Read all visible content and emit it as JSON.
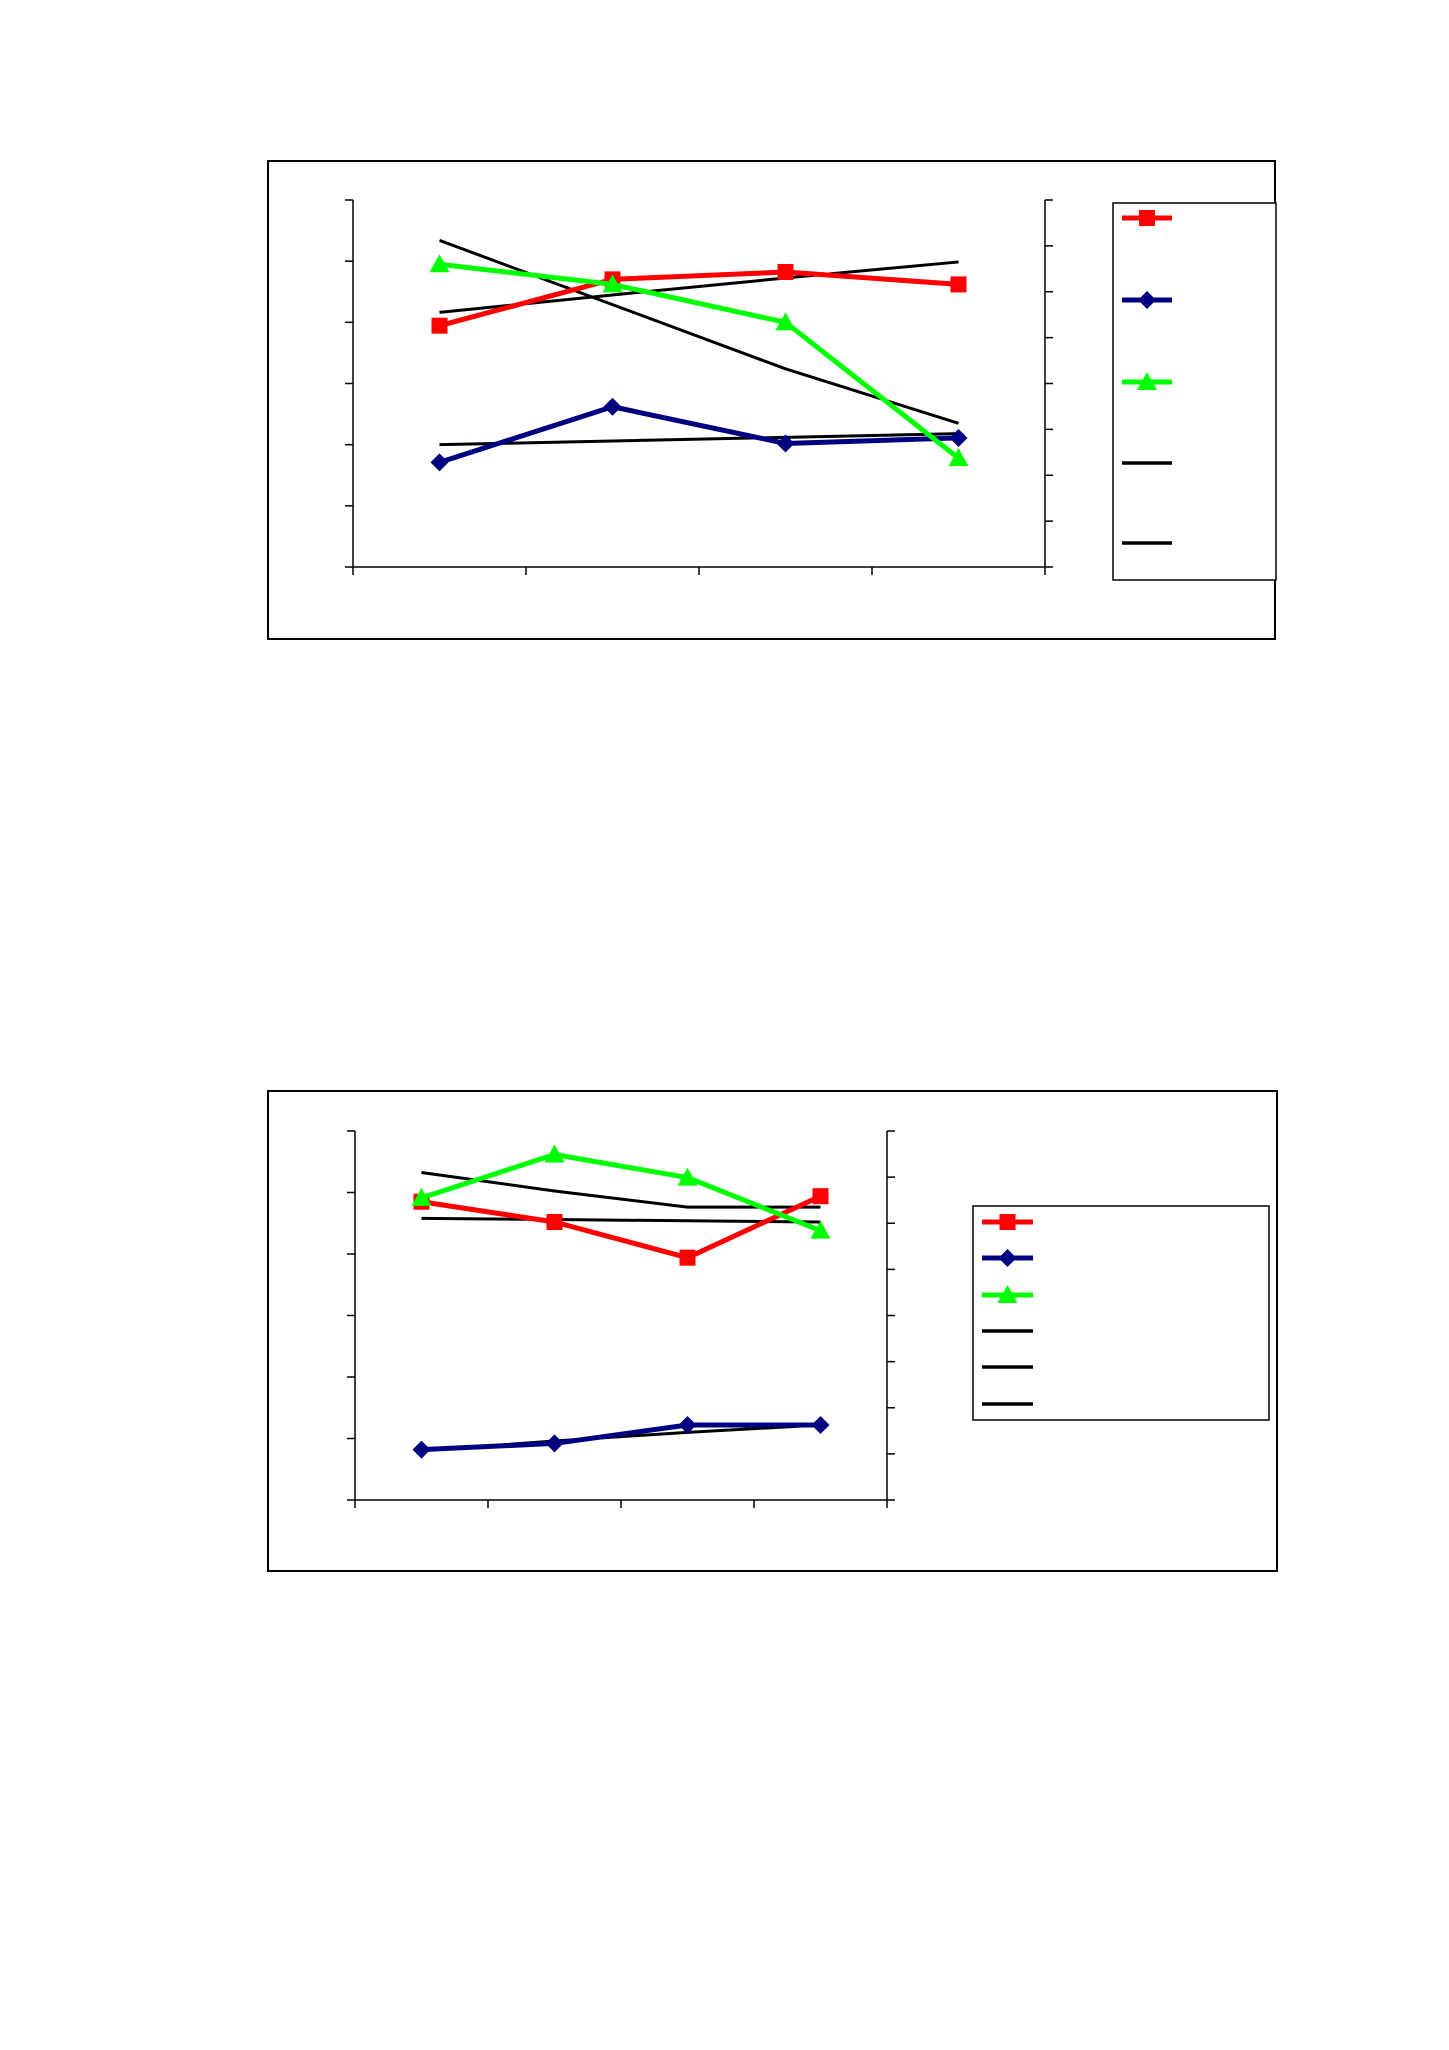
{
  "colors": {
    "red": "#ff0000",
    "navy": "#000080",
    "green": "#00ff00",
    "black": "#000000"
  },
  "chart_data": [
    {
      "type": "line",
      "title": "",
      "xlabel": "",
      "ylabel": "",
      "y2label": "",
      "x": [
        1,
        2,
        3,
        4
      ],
      "xlim": [
        0.5,
        4.5
      ],
      "ylim": [
        0,
        6
      ],
      "y2lim": [
        0,
        8
      ],
      "grid": false,
      "legend": "right",
      "series": [
        {
          "color": "#ff0000",
          "marker": "square",
          "axis": "right",
          "values": [
            5.26,
            6.27,
            6.43,
            6.16
          ]
        },
        {
          "color": "#000080",
          "marker": "diamond",
          "axis": "left",
          "values": [
            1.71,
            2.62,
            2.02,
            2.11
          ]
        },
        {
          "color": "#00ff00",
          "marker": "triangle",
          "axis": "left",
          "values": [
            4.95,
            4.62,
            4.0,
            1.78
          ]
        },
        {
          "color": "#000000",
          "marker": "none",
          "axis": "left",
          "kind": "trend",
          "values": [
            5.34,
            4.29,
            3.24,
            2.35
          ]
        },
        {
          "color": "#000000",
          "marker": "none",
          "axis": "left",
          "kind": "trend",
          "values": [
            2.0,
            2.06,
            2.12,
            2.18
          ]
        },
        {
          "color": "#000000",
          "marker": "none",
          "axis": "right",
          "kind": "trend",
          "values": [
            5.55,
            5.93,
            6.3,
            6.65
          ]
        }
      ],
      "legend_entries": [
        {
          "color": "#ff0000",
          "marker": "square"
        },
        {
          "color": "#000080",
          "marker": "diamond"
        },
        {
          "color": "#00ff00",
          "marker": "triangle"
        },
        {
          "color": "#000000",
          "marker": "none"
        },
        {
          "color": "#000000",
          "marker": "none"
        }
      ]
    },
    {
      "type": "line",
      "title": "",
      "xlabel": "",
      "ylabel": "",
      "y2label": "",
      "x": [
        1,
        2,
        3,
        4
      ],
      "xlim": [
        0.5,
        4.5
      ],
      "ylim": [
        0,
        6
      ],
      "y2lim": [
        0,
        8
      ],
      "grid": false,
      "legend": "right",
      "series": [
        {
          "color": "#ff0000",
          "marker": "square",
          "axis": "left",
          "values": [
            4.85,
            4.52,
            3.94,
            4.94
          ]
        },
        {
          "color": "#000080",
          "marker": "diamond",
          "axis": "left",
          "values": [
            0.82,
            0.92,
            1.22,
            1.22
          ]
        },
        {
          "color": "#00ff00",
          "marker": "triangle",
          "axis": "right",
          "values": [
            6.55,
            7.49,
            6.99,
            5.84
          ]
        },
        {
          "color": "#000000",
          "marker": "none",
          "axis": "right",
          "kind": "trend",
          "values": [
            7.1,
            6.7,
            6.35,
            6.35
          ]
        },
        {
          "color": "#000000",
          "marker": "none",
          "axis": "left",
          "kind": "trend",
          "values": [
            4.58,
            4.56,
            4.54,
            4.52
          ]
        },
        {
          "color": "#000000",
          "marker": "none",
          "axis": "left",
          "kind": "trend",
          "values": [
            0.8,
            0.96,
            1.1,
            1.22
          ]
        }
      ],
      "legend_entries": [
        {
          "color": "#ff0000",
          "marker": "square"
        },
        {
          "color": "#000080",
          "marker": "diamond"
        },
        {
          "color": "#00ff00",
          "marker": "triangle"
        },
        {
          "color": "#000000",
          "marker": "none"
        },
        {
          "color": "#000000",
          "marker": "none"
        },
        {
          "color": "#000000",
          "marker": "none"
        }
      ]
    }
  ]
}
